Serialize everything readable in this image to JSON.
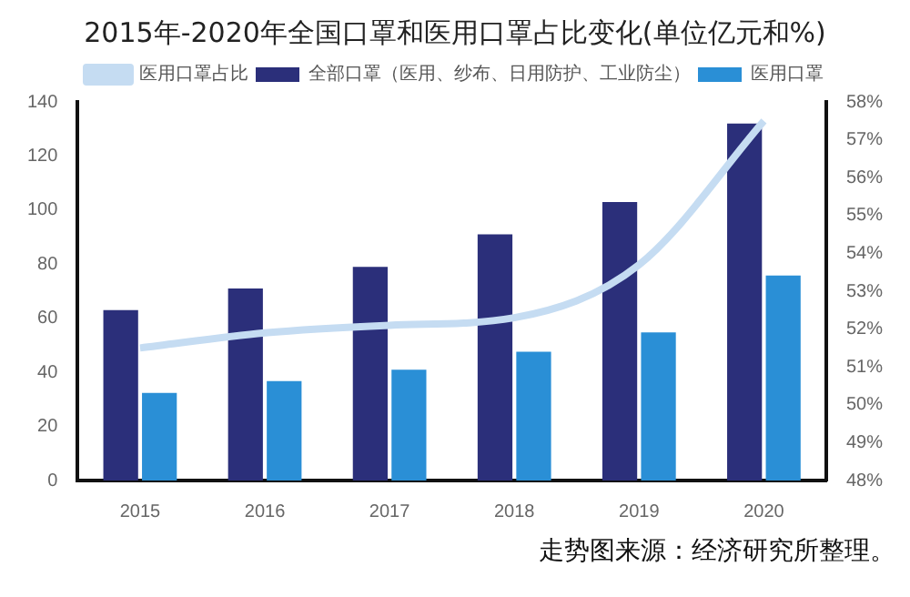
{
  "chart_data": {
    "type": "bar",
    "title": "2015年-2020年全国口罩和医用口罩占比变化(单位亿元和%)",
    "categories": [
      "2015",
      "2016",
      "2017",
      "2018",
      "2019",
      "2020"
    ],
    "series": [
      {
        "name": "全部口罩（医用、纱布、日用防护、工业防尘）",
        "color": "#2b2f7a",
        "values": [
          63,
          71,
          79,
          91,
          103,
          132
        ]
      },
      {
        "name": "医用口罩",
        "color": "#2a8fd6",
        "values": [
          32.4,
          36.8,
          41,
          47.6,
          54.8,
          75.8
        ]
      },
      {
        "name": "医用口罩占比",
        "type": "line",
        "axis": "y2",
        "color": "#c5dcf2",
        "values": [
          51.5,
          51.9,
          52.1,
          52.3,
          53.7,
          57.5
        ]
      }
    ],
    "ylim": [
      0,
      140
    ],
    "yticks": [
      0,
      20,
      40,
      60,
      80,
      100,
      120,
      140
    ],
    "y2lim": [
      48,
      58
    ],
    "y2ticks": [
      {
        "value": 48,
        "label": "48%"
      },
      {
        "value": 49,
        "label": "49%"
      },
      {
        "value": 50,
        "label": "50%"
      },
      {
        "value": 51,
        "label": "51%"
      },
      {
        "value": 52,
        "label": "52%"
      },
      {
        "value": 53,
        "label": "53%"
      },
      {
        "value": 54,
        "label": "54%"
      },
      {
        "value": 55,
        "label": "55%"
      },
      {
        "value": 56,
        "label": "56%"
      },
      {
        "value": 57,
        "label": "57%"
      },
      {
        "value": 58,
        "label": "58%"
      }
    ],
    "legend": "top",
    "marker": "none",
    "annotations": [
      "走势图来源：经济研究所整理。"
    ]
  }
}
